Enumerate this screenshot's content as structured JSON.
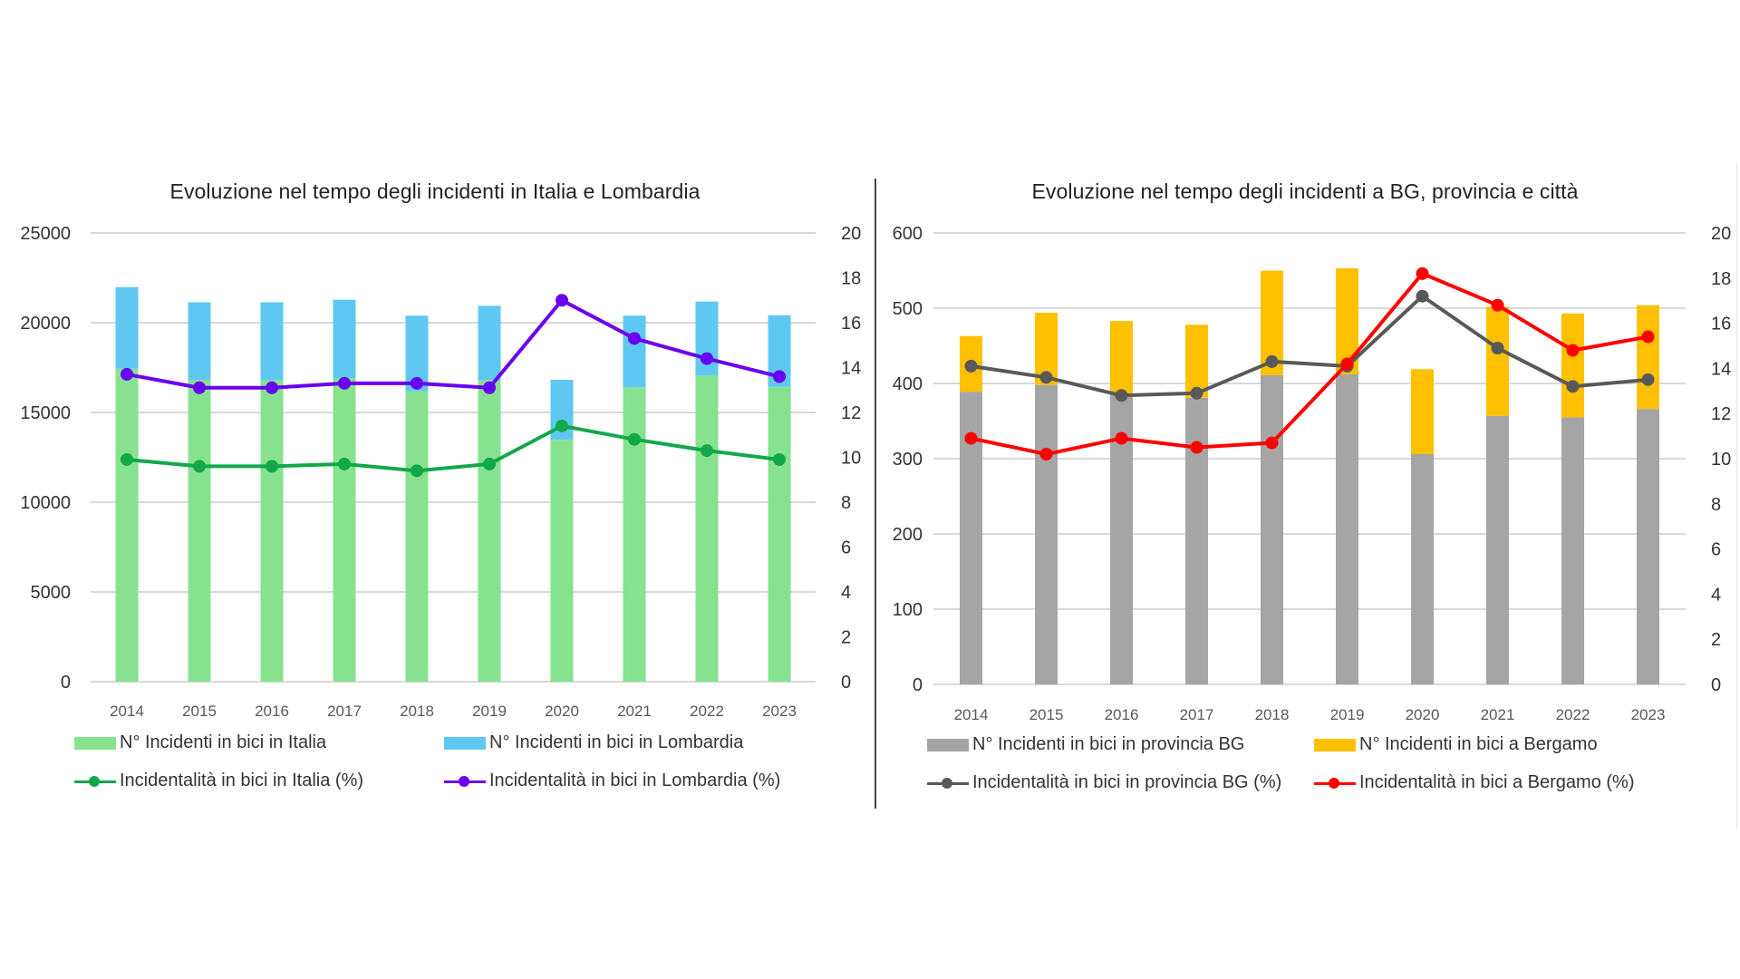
{
  "chart_data": [
    {
      "id": "left",
      "type": "bar",
      "stacked": true,
      "title": "Evoluzione nel tempo degli incidenti in Italia e Lombardia",
      "categories": [
        "2014",
        "2015",
        "2016",
        "2017",
        "2018",
        "2019",
        "2020",
        "2021",
        "2022",
        "2023"
      ],
      "ylim": [
        0,
        25000
      ],
      "yticks": [
        "0",
        "5000",
        "10000",
        "15000",
        "20000",
        "25000"
      ],
      "y2lim": [
        0,
        20
      ],
      "y2ticks": [
        "0",
        "2",
        "4",
        "6",
        "8",
        "10",
        "12",
        "14",
        "16",
        "18",
        "20"
      ],
      "grid": true,
      "legend_position": "bottom",
      "bar_series": [
        {
          "name": "N° Incidenti in bici in Italia",
          "color": "#86e28f",
          "values": [
            17440,
            16800,
            16800,
            16920,
            16180,
            16800,
            13480,
            16400,
            17050,
            16430
          ]
        },
        {
          "name": "N° Incidenti in bici in Lombardia",
          "color": "#5fc8f2",
          "values": [
            4545,
            4340,
            4340,
            4360,
            4210,
            4140,
            3340,
            3990,
            4130,
            3990
          ],
          "note": "stacked segment; total top ≈ Italia + Lombardia"
        }
      ],
      "bar_totals": [
        21985,
        21140,
        21140,
        21280,
        20390,
        20940,
        16820,
        20390,
        21180,
        20420
      ],
      "line_series": [
        {
          "name": "Incidentalità in bici in Italia (%)",
          "color": "#12a84a",
          "axis": "right",
          "values": [
            9.9,
            9.6,
            9.6,
            9.7,
            9.4,
            9.7,
            11.4,
            10.8,
            10.3,
            9.9
          ]
        },
        {
          "name": "Incidentalità in bici in Lombardia (%)",
          "color": "#6a00f0",
          "axis": "right",
          "values": [
            13.7,
            13.1,
            13.1,
            13.3,
            13.3,
            13.1,
            17.0,
            15.3,
            14.4,
            13.6
          ]
        }
      ],
      "xlabel": "",
      "ylabel": "",
      "y2label": ""
    },
    {
      "id": "right",
      "type": "bar",
      "stacked": true,
      "title": "Evoluzione nel tempo degli incidenti a BG, provincia e città",
      "categories": [
        "2014",
        "2015",
        "2016",
        "2017",
        "2018",
        "2019",
        "2020",
        "2021",
        "2022",
        "2023"
      ],
      "ylim": [
        0,
        600
      ],
      "yticks": [
        "0",
        "100",
        "200",
        "300",
        "400",
        "500",
        "600"
      ],
      "y2lim": [
        0,
        20
      ],
      "y2ticks": [
        "0",
        "2",
        "4",
        "6",
        "8",
        "10",
        "12",
        "14",
        "16",
        "18",
        "20"
      ],
      "grid": true,
      "legend_position": "bottom",
      "bar_series": [
        {
          "name": "N° Incidenti in bici in provincia BG",
          "color": "#a5a5a5",
          "values": [
            389,
            398,
            385,
            381,
            411,
            412,
            306,
            357,
            355,
            366
          ]
        },
        {
          "name": "N° Incidenti in bici a Bergamo",
          "color": "#ffc000",
          "values": [
            74,
            96,
            98,
            97,
            139,
            141,
            113,
            145,
            138,
            138
          ],
          "note": "stacked segment"
        }
      ],
      "bar_totals": [
        463,
        494,
        483,
        478,
        550,
        553,
        419,
        502,
        493,
        504
      ],
      "line_series": [
        {
          "name": "Incidentalità in bici in provincia BG (%)",
          "color": "#595959",
          "axis": "right",
          "values": [
            14.1,
            13.6,
            12.8,
            12.9,
            14.3,
            14.1,
            17.2,
            14.9,
            13.2,
            13.5
          ]
        },
        {
          "name": "Incidentalità in bici a Bergamo (%)",
          "color": "#ff0000",
          "axis": "right",
          "values": [
            10.9,
            10.2,
            10.9,
            10.5,
            10.7,
            14.2,
            18.2,
            16.8,
            14.8,
            15.4
          ]
        }
      ],
      "xlabel": "",
      "ylabel": "",
      "y2label": ""
    }
  ]
}
